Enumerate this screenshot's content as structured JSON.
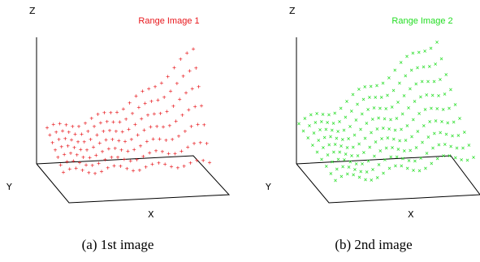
{
  "chart_data": [
    {
      "type": "scatter",
      "marker": "+",
      "color": "#e8171c",
      "title": "Range Image 1",
      "axes": {
        "x": "X",
        "y": "Y",
        "z": "Z"
      },
      "caption": "(a) 1st image",
      "grid": false
    },
    {
      "type": "scatter",
      "marker": "x",
      "color": "#22dd22",
      "title": "Range Image 2",
      "axes": {
        "x": "X",
        "y": "Y",
        "z": "Z"
      },
      "caption": "(b) 2nd image",
      "grid": false
    }
  ]
}
